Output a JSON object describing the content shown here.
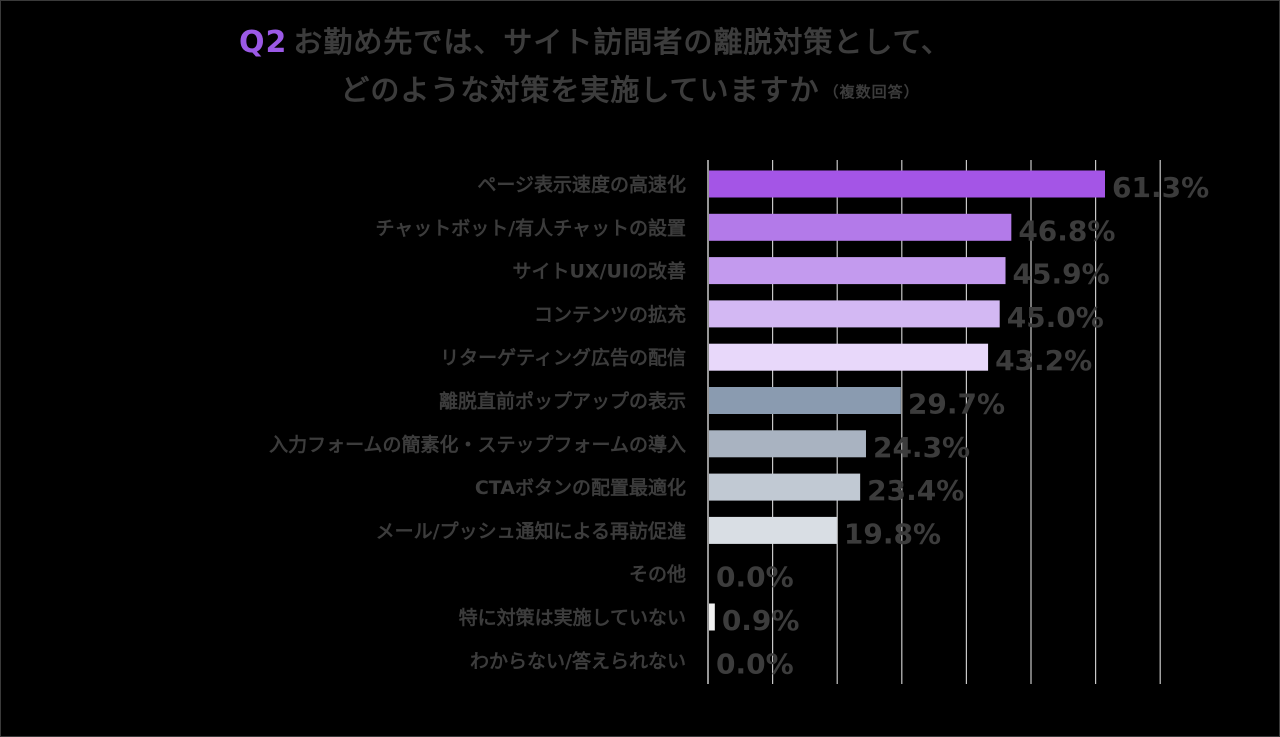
{
  "header": {
    "question_no": "Q2",
    "title_line1": "お勤め先では、サイト訪問者の離脱対策として、",
    "title_line2": "どのような対策を実施していますか",
    "title_note": "（複数回答）"
  },
  "chart_data": {
    "type": "bar",
    "orientation": "horizontal",
    "title": "Q2 お勤め先では、サイト訪問者の離脱対策として、どのような対策を実施していますか（複数回答）",
    "categories": [
      "ページ表示速度の高速化",
      "チャットボット/有人チャットの設置",
      "サイトUX/UIの改善",
      "コンテンツの拡充",
      "リターゲティング広告の配信",
      "離脱直前ポップアップの表示",
      "入力フォームの簡素化・ステップフォームの導入",
      "CTAボタンの配置最適化",
      "メール/プッシュ通知による再訪促進",
      "その他",
      "特に対策は実施していない",
      "わからない/答えられない"
    ],
    "values": [
      61.3,
      46.8,
      45.9,
      45.0,
      43.2,
      29.7,
      24.3,
      23.4,
      19.8,
      0.0,
      0.9,
      0.0
    ],
    "value_labels": [
      "61.3%",
      "46.8%",
      "45.9%",
      "45.0%",
      "43.2%",
      "29.7%",
      "24.3%",
      "23.4%",
      "19.8%",
      "0.0%",
      "0.9%",
      "0.0%"
    ],
    "colors": [
      "#a455e6",
      "#b37ae9",
      "#c39aee",
      "#d3b8f3",
      "#e8d8fa",
      "#8a9bb0",
      "#a9b3c1",
      "#c1c9d3",
      "#d9dee4",
      "#ecedf0",
      "#f2f2f2",
      "#f2f2f2"
    ],
    "xlim": [
      0,
      70
    ],
    "grid": true,
    "legend": "none",
    "xlabel": "",
    "ylabel": ""
  }
}
